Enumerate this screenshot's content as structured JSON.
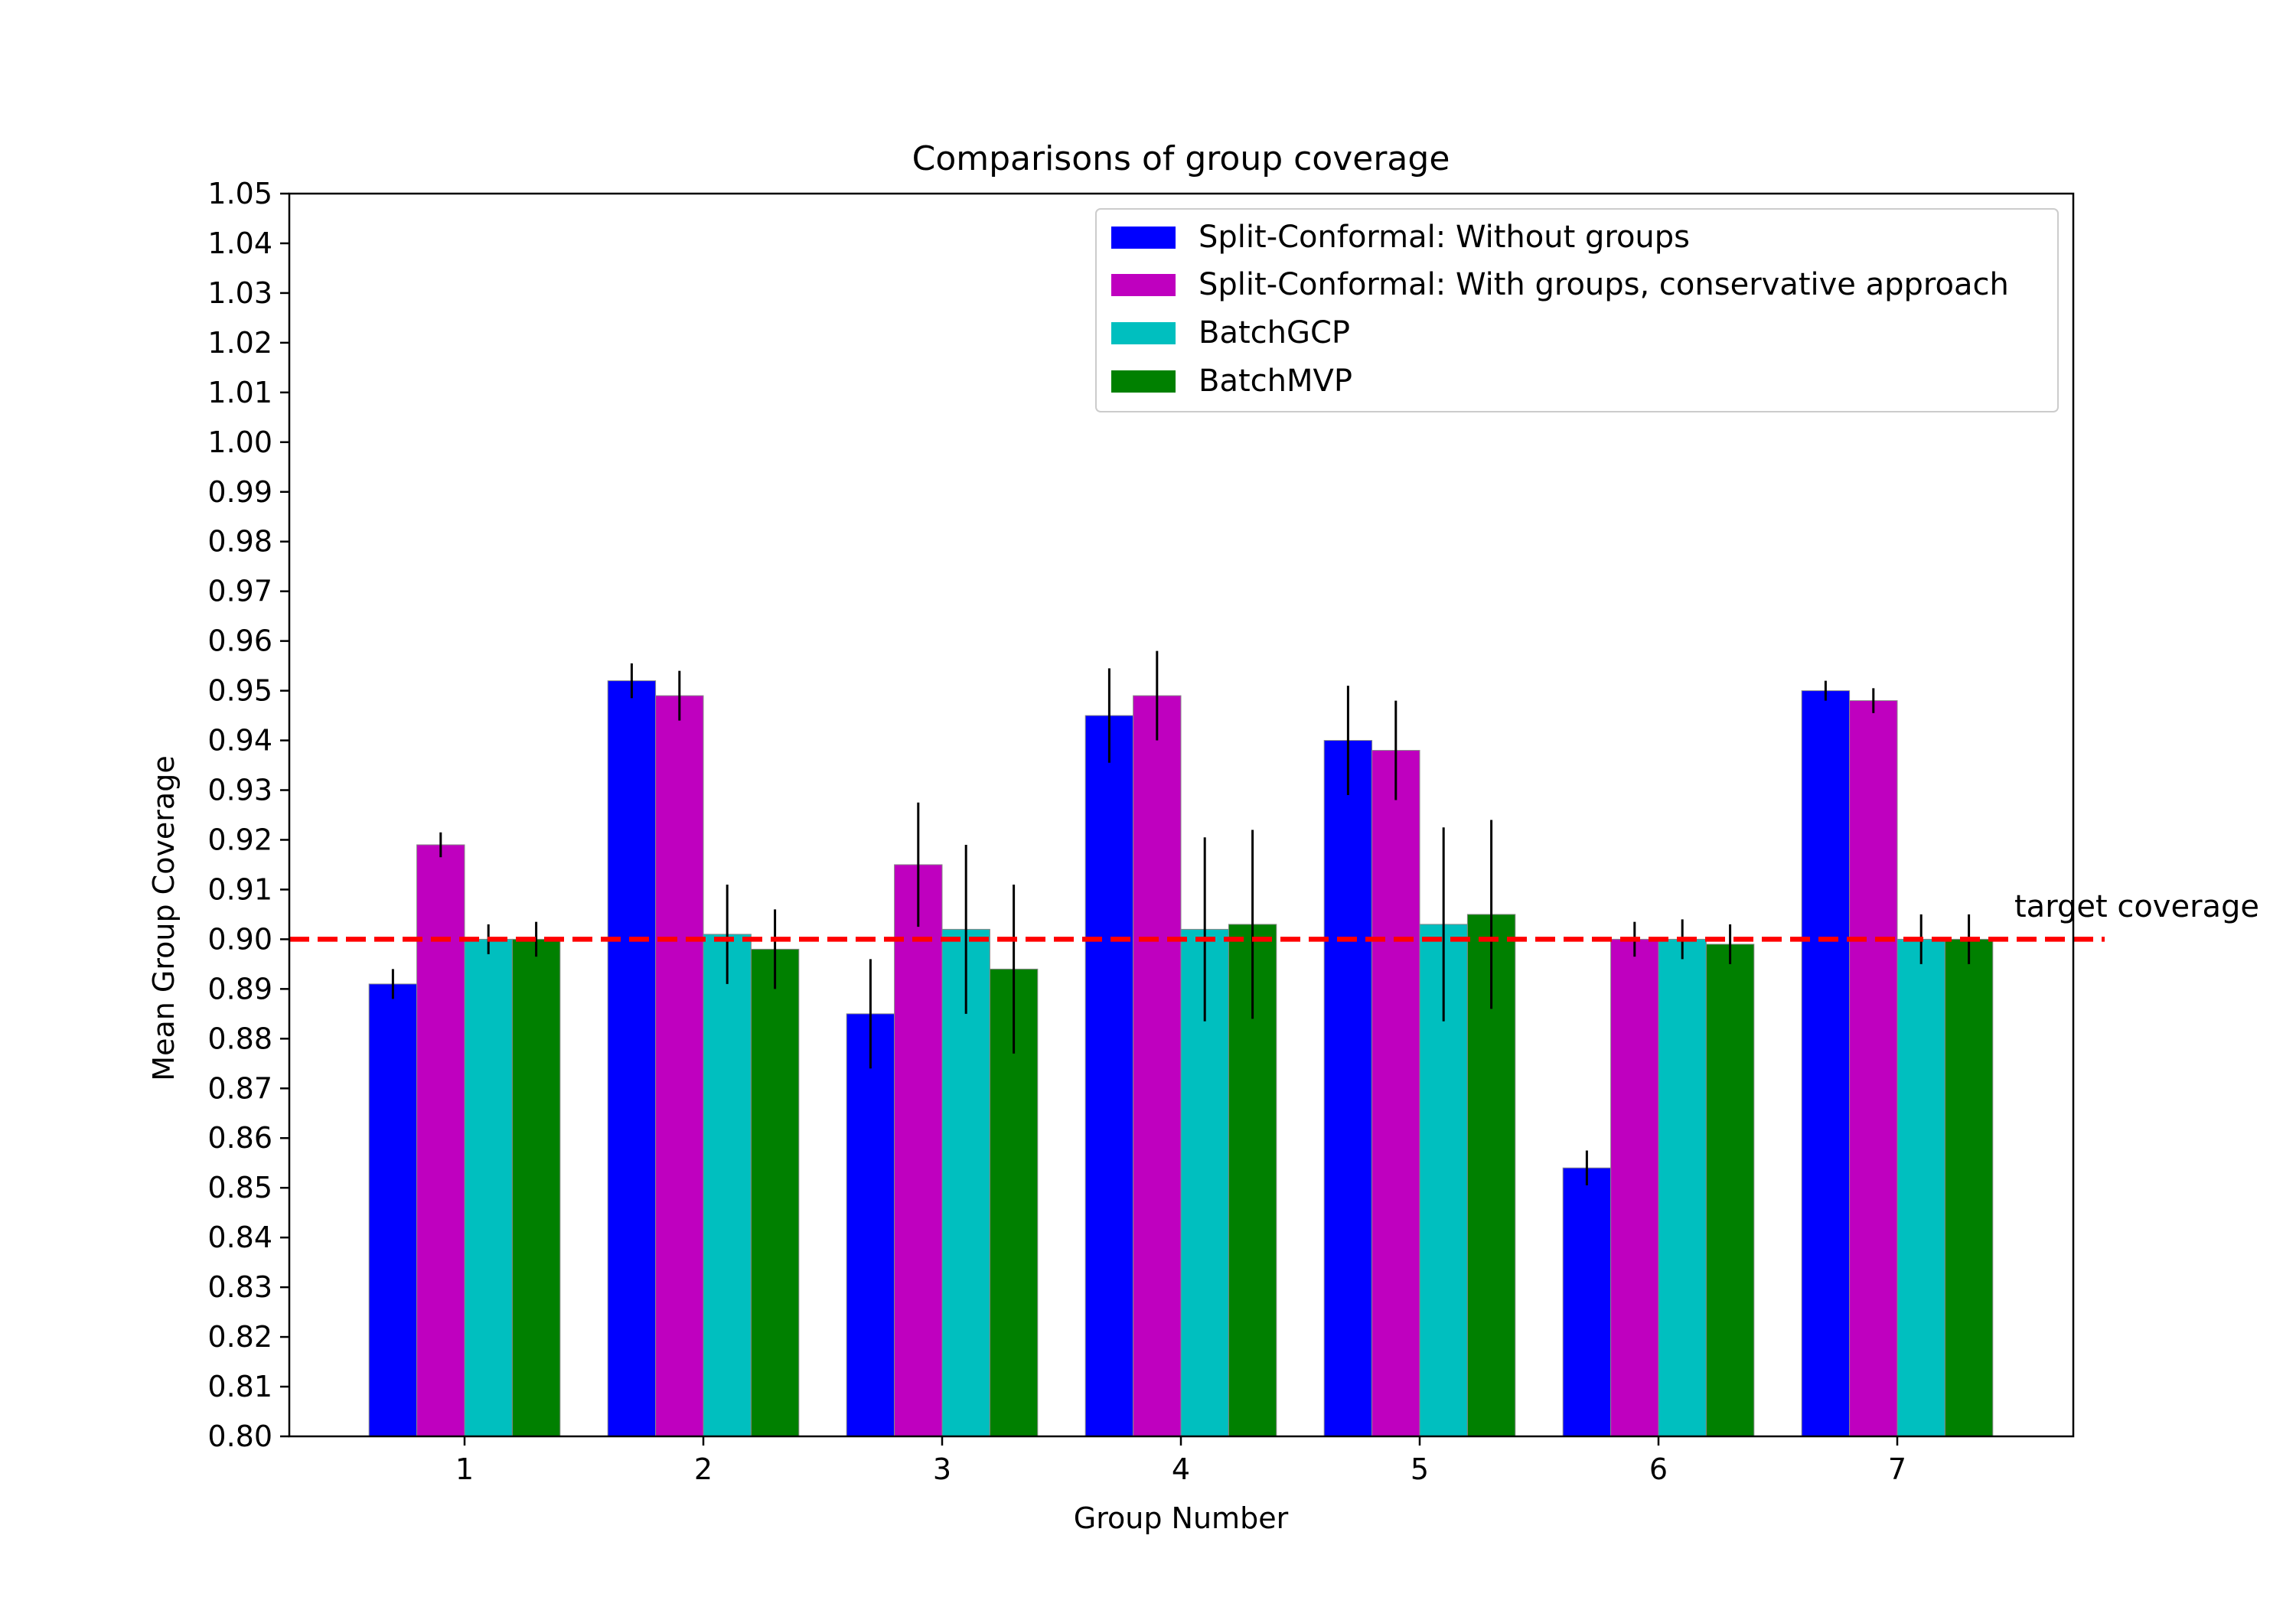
{
  "chart_data": {
    "type": "bar",
    "title": "Comparisons of group coverage",
    "xlabel": "Group Number",
    "ylabel": "Mean Group Coverage",
    "ylim": [
      0.8,
      1.05
    ],
    "y_ticks": [
      "0.80",
      "0.81",
      "0.82",
      "0.83",
      "0.84",
      "0.85",
      "0.86",
      "0.87",
      "0.88",
      "0.89",
      "0.90",
      "0.91",
      "0.92",
      "0.93",
      "0.94",
      "0.95",
      "0.96",
      "0.97",
      "0.98",
      "0.99",
      "1.00",
      "1.01",
      "1.02",
      "1.03",
      "1.04",
      "1.05"
    ],
    "categories": [
      "1",
      "2",
      "3",
      "4",
      "5",
      "6",
      "7"
    ],
    "series": [
      {
        "name": "Split-Conformal: Without groups",
        "color": "#0000ff",
        "values": [
          0.891,
          0.952,
          0.885,
          0.945,
          0.94,
          0.854,
          0.95
        ],
        "errors": [
          0.003,
          0.0035,
          0.011,
          0.0095,
          0.011,
          0.0035,
          0.002
        ]
      },
      {
        "name": "Split-Conformal: With groups, conservative approach",
        "color": "#bf00bf",
        "values": [
          0.919,
          0.949,
          0.915,
          0.949,
          0.938,
          0.9,
          0.948
        ],
        "errors": [
          0.0025,
          0.005,
          0.0125,
          0.009,
          0.01,
          0.0035,
          0.0025
        ]
      },
      {
        "name": "BatchGCP",
        "color": "#00bfbf",
        "values": [
          0.9,
          0.901,
          0.902,
          0.902,
          0.903,
          0.9,
          0.9
        ],
        "errors": [
          0.003,
          0.01,
          0.017,
          0.0185,
          0.0195,
          0.004,
          0.005
        ]
      },
      {
        "name": "BatchMVP",
        "color": "#008000",
        "values": [
          0.9,
          0.898,
          0.894,
          0.903,
          0.905,
          0.899,
          0.9
        ],
        "errors": [
          0.0035,
          0.008,
          0.017,
          0.019,
          0.019,
          0.004,
          0.005
        ]
      }
    ],
    "reference_line": {
      "value": 0.9,
      "label": "target coverage",
      "color": "#ff0000",
      "style": "dashed"
    },
    "legend_position": "top-right",
    "grid": false
  }
}
